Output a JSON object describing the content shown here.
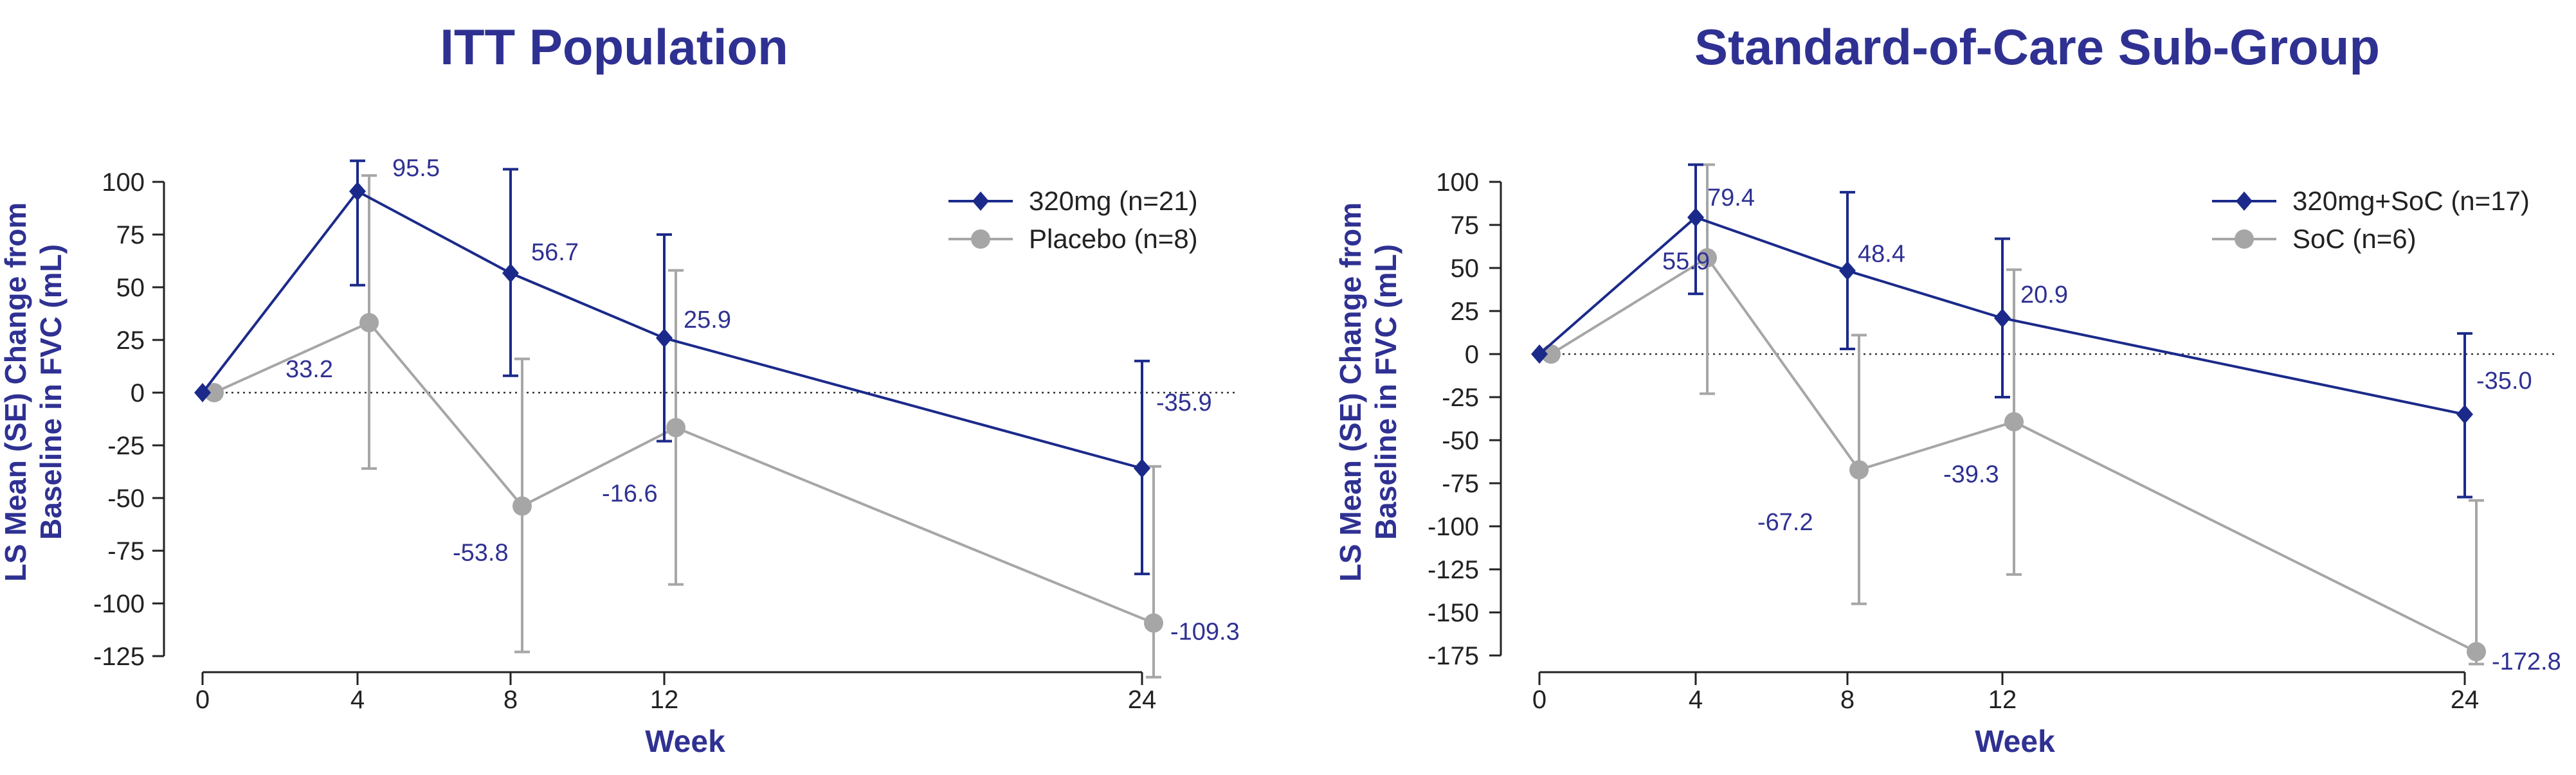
{
  "colors": {
    "series_active": "#1b2a8a",
    "series_control": "#a6a6a6",
    "title": "#2f3192",
    "label_text": "#2f3192",
    "axis": "#222222"
  },
  "chart_data": [
    {
      "type": "line",
      "title": "ITT Population",
      "xlabel": "Week",
      "ylabel_lines": [
        "LS Mean (SE) Change from",
        "Baseline in FVC (mL)"
      ],
      "x_ticks": [
        0,
        4,
        8,
        12,
        24
      ],
      "x_tick_labels": [
        "0",
        "4",
        "8",
        "12",
        "24"
      ],
      "y_ticks": [
        100,
        75,
        50,
        25,
        0,
        -25,
        -50,
        -75,
        -100,
        -125
      ],
      "y_tick_labels": [
        "100",
        "75",
        "50",
        "25",
        "0",
        "-25",
        "-50",
        "-75",
        "-100",
        "-125"
      ],
      "ylim": [
        -125,
        100
      ],
      "xlim": [
        0,
        24
      ],
      "reference_line": 0,
      "legend_position": "top-right",
      "series": [
        {
          "name": "320mg (n=21)",
          "marker": "diamond",
          "x": [
            0,
            4,
            8,
            12,
            24
          ],
          "values": [
            0,
            95.5,
            56.7,
            25.9,
            -35.9
          ],
          "err_low": [
            0,
            51,
            8,
            -23,
            -86
          ],
          "err_high": [
            0,
            110,
            106,
            75,
            15
          ],
          "data_labels": [
            "",
            "95.5",
            "56.7",
            "25.9",
            "-35.9"
          ]
        },
        {
          "name": "Placebo (n=8)",
          "marker": "circle",
          "x": [
            0,
            4,
            8,
            12,
            24
          ],
          "values": [
            0,
            33.2,
            -53.8,
            -16.6,
            -109.3
          ],
          "err_low": [
            0,
            -36,
            -123,
            -91,
            -135
          ],
          "err_high": [
            0,
            103,
            16,
            58,
            -35
          ],
          "data_labels": [
            "",
            "33.2",
            "-53.8",
            "-16.6",
            "-109.3"
          ]
        }
      ]
    },
    {
      "type": "line",
      "title": "Standard-of-Care Sub-Group",
      "xlabel": "Week",
      "ylabel_lines": [
        "LS Mean (SE) Change from",
        "Baseline in FVC (mL)"
      ],
      "x_ticks": [
        0,
        4,
        8,
        12,
        24
      ],
      "x_tick_labels": [
        "0",
        "4",
        "8",
        "12",
        "24"
      ],
      "y_ticks": [
        100,
        75,
        50,
        25,
        0,
        -25,
        -50,
        -75,
        -100,
        -125,
        -150,
        -175
      ],
      "y_tick_labels": [
        "100",
        "75",
        "50",
        "25",
        "0",
        "-25",
        "-50",
        "-75",
        "-100",
        "-125",
        "-150",
        "-175"
      ],
      "ylim": [
        -175,
        100
      ],
      "xlim": [
        0,
        24
      ],
      "reference_line": 0,
      "legend_position": "top-right",
      "series": [
        {
          "name": "320mg+SoC (n=17)",
          "marker": "diamond",
          "x": [
            0,
            4,
            8,
            12,
            24
          ],
          "values": [
            0,
            79.4,
            48.4,
            20.9,
            -35.0
          ],
          "err_low": [
            0,
            35,
            3,
            -25,
            -83
          ],
          "err_high": [
            0,
            110,
            94,
            67,
            12
          ],
          "data_labels": [
            "",
            "79.4",
            "48.4",
            "20.9",
            "-35.0"
          ]
        },
        {
          "name": "SoC (n=6)",
          "marker": "circle",
          "x": [
            0,
            4,
            8,
            12,
            24
          ],
          "values": [
            0,
            55.9,
            -67.2,
            -39.3,
            -172.8
          ],
          "err_low": [
            0,
            -23,
            -145,
            -128,
            -180
          ],
          "err_high": [
            0,
            110,
            11,
            49,
            -85
          ],
          "data_labels": [
            "",
            "55.9",
            "-67.2",
            "-39.3",
            "-172.8"
          ]
        }
      ]
    }
  ]
}
